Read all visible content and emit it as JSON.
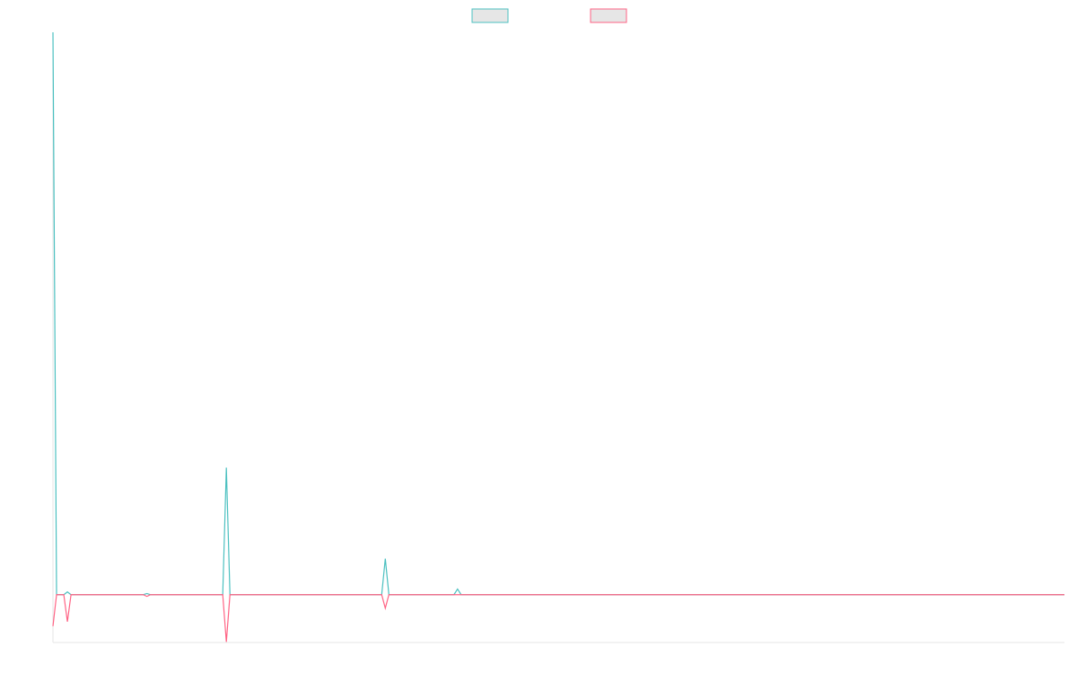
{
  "chart_data": {
    "type": "line",
    "legend": "top",
    "grid": false,
    "x": [
      0,
      1,
      3,
      4,
      5,
      25,
      26,
      27,
      47,
      48,
      49,
      91,
      92,
      93,
      111,
      112,
      113,
      280
    ],
    "xlim": [
      0,
      280
    ],
    "ylim": [
      -8.5,
      100
    ],
    "series": [
      {
        "color": "#4bc0c0",
        "values": [
          100,
          0,
          0,
          0.5,
          0,
          0,
          0.2,
          0,
          0,
          22.6,
          0,
          0,
          6.4,
          0,
          0,
          1,
          0,
          0
        ]
      },
      {
        "color": "#ff6384",
        "values": [
          -5.6,
          0,
          0,
          -4.8,
          0,
          0,
          -0.3,
          0,
          0,
          -8.4,
          0,
          0,
          -2.4,
          0,
          0,
          0,
          0,
          0
        ]
      }
    ]
  }
}
